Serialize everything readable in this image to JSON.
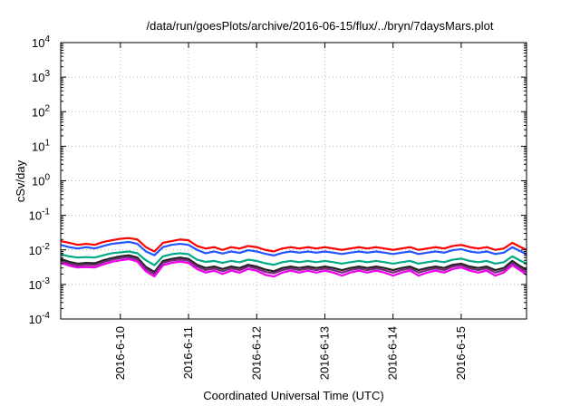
{
  "chart_data": {
    "type": "line",
    "title": "/data/run/goesPlots/archive/2016-06-15/flux/../bryn/7daysMars.plot",
    "xlabel": "Coordinated Universal Time (UTC)",
    "ylabel": "cSv/day",
    "yscale": "log",
    "ylim": [
      0.0001,
      10000
    ],
    "yticks": [
      {
        "mant": "10",
        "exp": "-4"
      },
      {
        "mant": "10",
        "exp": "-3"
      },
      {
        "mant": "10",
        "exp": "-2"
      },
      {
        "mant": "10",
        "exp": "-1"
      },
      {
        "mant": "10",
        "exp": "0"
      },
      {
        "mant": "10",
        "exp": "1"
      },
      {
        "mant": "10",
        "exp": "2"
      },
      {
        "mant": "10",
        "exp": "3"
      },
      {
        "mant": "10",
        "exp": "4"
      }
    ],
    "xlim": [
      "2016-06-09 03:00",
      "2016-06-15 23:00"
    ],
    "xticks": [
      "2016-6-10",
      "2016-6-11",
      "2016-6-12",
      "2016-6-13",
      "2016-6-14",
      "2016-6-15"
    ],
    "grid": true,
    "x": [
      "2016-06-09 03:00",
      "2016-06-09 06:00",
      "2016-06-09 09:00",
      "2016-06-09 12:00",
      "2016-06-09 15:00",
      "2016-06-09 18:00",
      "2016-06-09 21:00",
      "2016-06-10 00:00",
      "2016-06-10 03:00",
      "2016-06-10 06:00",
      "2016-06-10 09:00",
      "2016-06-10 12:00",
      "2016-06-10 15:00",
      "2016-06-10 18:00",
      "2016-06-10 21:00",
      "2016-06-11 00:00",
      "2016-06-11 03:00",
      "2016-06-11 06:00",
      "2016-06-11 09:00",
      "2016-06-11 12:00",
      "2016-06-11 15:00",
      "2016-06-11 18:00",
      "2016-06-11 21:00",
      "2016-06-12 00:00",
      "2016-06-12 03:00",
      "2016-06-12 06:00",
      "2016-06-12 09:00",
      "2016-06-12 12:00",
      "2016-06-12 15:00",
      "2016-06-12 18:00",
      "2016-06-12 21:00",
      "2016-06-13 00:00",
      "2016-06-13 03:00",
      "2016-06-13 06:00",
      "2016-06-13 09:00",
      "2016-06-13 12:00",
      "2016-06-13 15:00",
      "2016-06-13 18:00",
      "2016-06-13 21:00",
      "2016-06-14 00:00",
      "2016-06-14 03:00",
      "2016-06-14 06:00",
      "2016-06-14 09:00",
      "2016-06-14 12:00",
      "2016-06-14 15:00",
      "2016-06-14 18:00",
      "2016-06-14 21:00",
      "2016-06-15 00:00",
      "2016-06-15 03:00",
      "2016-06-15 06:00",
      "2016-06-15 09:00",
      "2016-06-15 12:00",
      "2016-06-15 15:00",
      "2016-06-15 18:00",
      "2016-06-15 21:00",
      "2016-06-15 23:00"
    ],
    "series": [
      {
        "color": "#ff0000",
        "values": [
          0.018,
          0.016,
          0.014,
          0.015,
          0.014,
          0.017,
          0.019,
          0.021,
          0.022,
          0.02,
          0.012,
          0.009,
          0.016,
          0.018,
          0.02,
          0.019,
          0.013,
          0.011,
          0.012,
          0.01,
          0.012,
          0.011,
          0.013,
          0.012,
          0.01,
          0.009,
          0.011,
          0.012,
          0.011,
          0.012,
          0.011,
          0.012,
          0.011,
          0.01,
          0.011,
          0.012,
          0.011,
          0.012,
          0.011,
          0.01,
          0.011,
          0.012,
          0.01,
          0.011,
          0.012,
          0.011,
          0.013,
          0.014,
          0.012,
          0.011,
          0.012,
          0.01,
          0.011,
          0.016,
          0.012,
          0.01
        ]
      },
      {
        "color": "#2255ff",
        "values": [
          0.014,
          0.012,
          0.011,
          0.012,
          0.011,
          0.013,
          0.015,
          0.016,
          0.017,
          0.015,
          0.009,
          0.007,
          0.012,
          0.014,
          0.015,
          0.014,
          0.01,
          0.008,
          0.009,
          0.0078,
          0.009,
          0.0082,
          0.0098,
          0.009,
          0.0077,
          0.0069,
          0.0082,
          0.009,
          0.0083,
          0.009,
          0.0083,
          0.009,
          0.0083,
          0.0076,
          0.0083,
          0.009,
          0.0083,
          0.009,
          0.0083,
          0.0076,
          0.0083,
          0.009,
          0.0076,
          0.0083,
          0.009,
          0.0083,
          0.0098,
          0.0105,
          0.009,
          0.0083,
          0.009,
          0.0076,
          0.0083,
          0.012,
          0.009,
          0.0075
        ]
      },
      {
        "color": "#00aa88",
        "values": [
          0.0075,
          0.0065,
          0.006,
          0.0062,
          0.006,
          0.007,
          0.008,
          0.0085,
          0.009,
          0.008,
          0.005,
          0.0036,
          0.0065,
          0.0075,
          0.008,
          0.0075,
          0.0052,
          0.0045,
          0.0048,
          0.0042,
          0.0048,
          0.0044,
          0.0052,
          0.0048,
          0.0041,
          0.0037,
          0.0044,
          0.0048,
          0.0044,
          0.0048,
          0.0044,
          0.0048,
          0.0044,
          0.004,
          0.0044,
          0.0048,
          0.0044,
          0.0048,
          0.0044,
          0.004,
          0.0044,
          0.0048,
          0.004,
          0.0044,
          0.0048,
          0.0044,
          0.0052,
          0.0056,
          0.0048,
          0.0044,
          0.0048,
          0.004,
          0.0044,
          0.0065,
          0.0048,
          0.004
        ]
      },
      {
        "color": "#222222",
        "values": [
          0.0055,
          0.0045,
          0.004,
          0.0042,
          0.0041,
          0.005,
          0.0058,
          0.0065,
          0.007,
          0.006,
          0.0032,
          0.0023,
          0.0048,
          0.0055,
          0.006,
          0.0055,
          0.0037,
          0.003,
          0.0033,
          0.0028,
          0.0033,
          0.003,
          0.0037,
          0.0033,
          0.0027,
          0.0024,
          0.003,
          0.0033,
          0.003,
          0.0033,
          0.003,
          0.0033,
          0.003,
          0.0026,
          0.003,
          0.0033,
          0.003,
          0.0033,
          0.003,
          0.0026,
          0.003,
          0.0033,
          0.0026,
          0.003,
          0.0033,
          0.003,
          0.0037,
          0.004,
          0.0033,
          0.003,
          0.0033,
          0.0026,
          0.003,
          0.0048,
          0.0033,
          0.0027
        ]
      },
      {
        "color": "#7a2a7a",
        "values": [
          0.0048,
          0.004,
          0.0035,
          0.0037,
          0.0036,
          0.0044,
          0.0052,
          0.0058,
          0.0062,
          0.0053,
          0.0028,
          0.002,
          0.0042,
          0.0049,
          0.0053,
          0.0049,
          0.0033,
          0.0026,
          0.0029,
          0.0024,
          0.0029,
          0.0026,
          0.0033,
          0.0029,
          0.0023,
          0.0021,
          0.0026,
          0.0029,
          0.0026,
          0.0029,
          0.0026,
          0.0029,
          0.0026,
          0.0022,
          0.0026,
          0.0029,
          0.0026,
          0.0029,
          0.0026,
          0.0022,
          0.0026,
          0.0029,
          0.0022,
          0.0026,
          0.0029,
          0.0026,
          0.0033,
          0.0036,
          0.0029,
          0.0026,
          0.0029,
          0.0022,
          0.0026,
          0.0042,
          0.0029,
          0.0023
        ]
      },
      {
        "color": "#ee00ee",
        "values": [
          0.0042,
          0.0035,
          0.0031,
          0.0032,
          0.0031,
          0.0038,
          0.0045,
          0.005,
          0.0054,
          0.0046,
          0.0024,
          0.0017,
          0.0036,
          0.0042,
          0.0046,
          0.0042,
          0.0028,
          0.0022,
          0.0025,
          0.002,
          0.0025,
          0.0022,
          0.0028,
          0.0025,
          0.0019,
          0.0017,
          0.0022,
          0.0025,
          0.0022,
          0.0025,
          0.0022,
          0.0025,
          0.0022,
          0.0018,
          0.0022,
          0.0025,
          0.0022,
          0.0025,
          0.0022,
          0.0018,
          0.0022,
          0.0025,
          0.0018,
          0.0022,
          0.0025,
          0.0022,
          0.0028,
          0.0031,
          0.0025,
          0.0022,
          0.0025,
          0.0018,
          0.0022,
          0.0036,
          0.0025,
          0.0019
        ]
      }
    ]
  }
}
